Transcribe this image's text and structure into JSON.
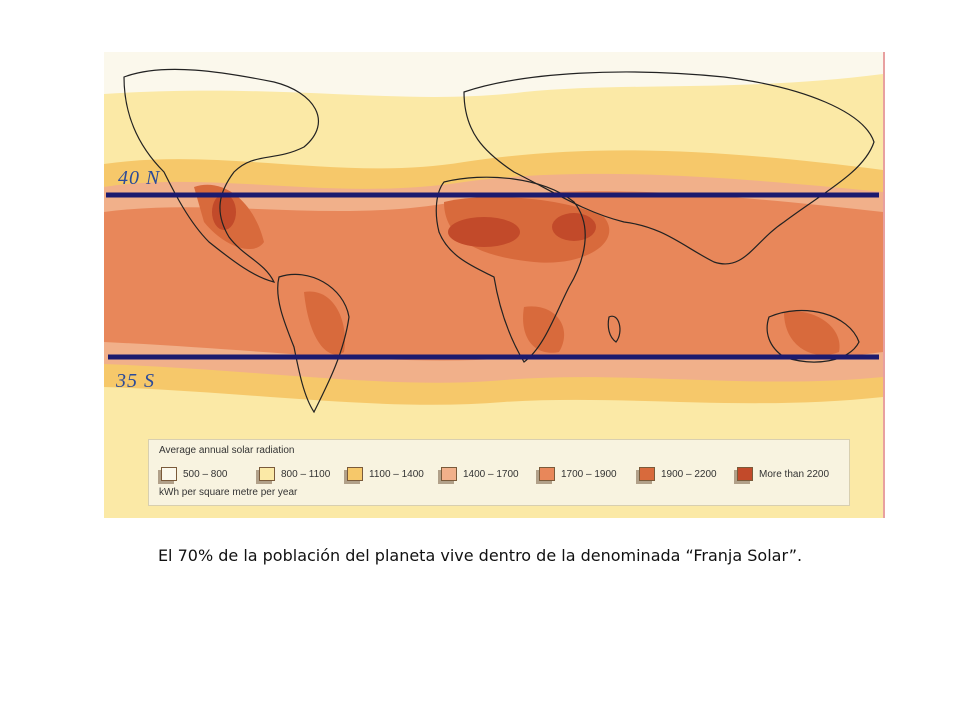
{
  "map": {
    "lat_north_label": "40 N",
    "lat_south_label": "35 S",
    "line_color": "#1c1a6e",
    "legend": {
      "title": "Average annual solar radiation",
      "unit": "kWh per square metre per year",
      "items": [
        {
          "label": "500 – 800",
          "color": "#fbf8ec"
        },
        {
          "label": "800 – 1100",
          "color": "#fbe9a6"
        },
        {
          "label": "1100 – 1400",
          "color": "#f6c86a"
        },
        {
          "label": "1400 – 1700",
          "color": "#f1b08a"
        },
        {
          "label": "1700 – 1900",
          "color": "#e8875a"
        },
        {
          "label": "1900 – 2200",
          "color": "#d86a3c"
        },
        {
          "label": "More than 2200",
          "color": "#c24a2a"
        }
      ]
    }
  },
  "caption": "El 70% de la población del planeta vive dentro de la denominada “Franja Solar”."
}
